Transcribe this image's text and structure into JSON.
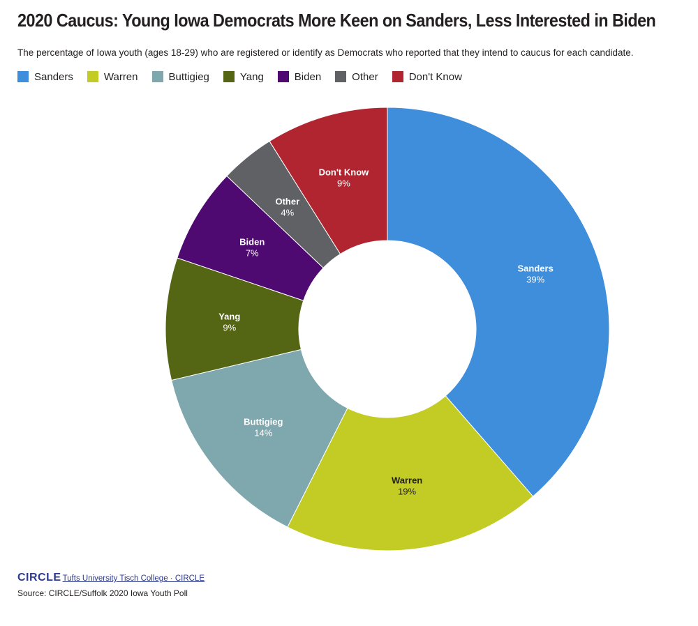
{
  "title": "2020 Caucus: Young Iowa Democrats More Keen on Sanders, Less Interested in Biden",
  "subtitle": "The percentage of Iowa youth (ages 18-29) who are registered or identify as Democrats who reported that they intend to caucus for each candidate.",
  "chart_data": {
    "type": "pie",
    "style": "donut",
    "title": "2020 Caucus: Young Iowa Democrats More Keen on Sanders, Less Interested in Biden",
    "legend_position": "top-left",
    "categories": [
      "Sanders",
      "Warren",
      "Buttigieg",
      "Yang",
      "Biden",
      "Other",
      "Don't Know"
    ],
    "values": [
      39,
      19,
      14,
      9,
      7,
      4,
      9
    ],
    "labels": [
      "39%",
      "19%",
      "14%",
      "9%",
      "7%",
      "4%",
      "9%"
    ],
    "colors": [
      "#3f8edc",
      "#c2cc24",
      "#7fa8ae",
      "#546514",
      "#4e0a70",
      "#5f6164",
      "#b02530"
    ],
    "label_colors": [
      "#ffffff",
      "#231f20",
      "#ffffff",
      "#ffffff",
      "#ffffff",
      "#ffffff",
      "#ffffff"
    ],
    "start_angle_deg": 0,
    "direction": "clockwise"
  },
  "footer": {
    "logo_main": "CIRCLE",
    "logo_sub": "Tufts University Tisch College · CIRCLE",
    "source": "Source: CIRCLE/Suffolk 2020 Iowa Youth Poll"
  }
}
